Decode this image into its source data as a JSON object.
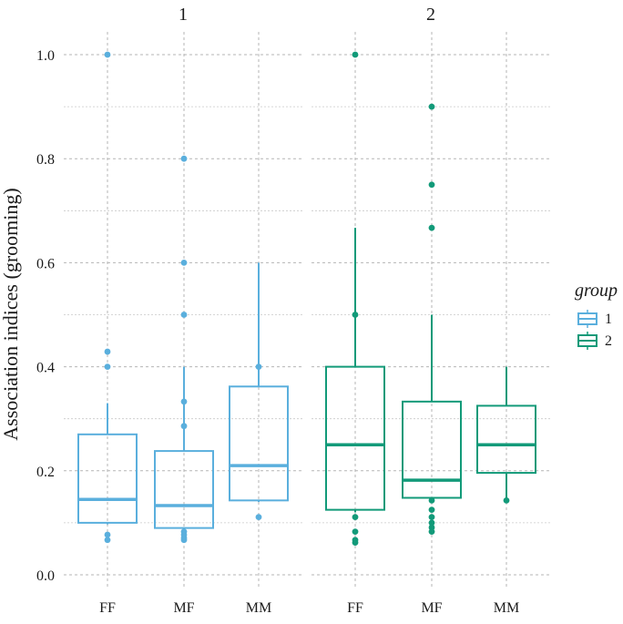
{
  "chart_data": {
    "type": "boxplot",
    "ylabel": "Association indices (grooming)",
    "xlabel": "",
    "ylim": [
      -0.02,
      1.05
    ],
    "yticks": [
      0.0,
      0.2,
      0.4,
      0.6,
      0.8,
      1.0
    ],
    "ytick_labels": [
      "0.0",
      "0.2",
      "0.4",
      "0.6",
      "0.8",
      "1.0"
    ],
    "categories": [
      "FF",
      "MF",
      "MM"
    ],
    "grid": true,
    "legend": {
      "title": "group",
      "position": "right",
      "entries": [
        {
          "label": "1",
          "color": "#5aafdd"
        },
        {
          "label": "2",
          "color": "#129a79"
        }
      ]
    },
    "panels": [
      {
        "title": "1",
        "group": "1",
        "color": "#5aafdd",
        "boxes": [
          {
            "category": "FF",
            "min": 0.097,
            "q1": 0.1,
            "median": 0.145,
            "q3": 0.27,
            "max": 0.33,
            "outliers": [
              0.067,
              0.077,
              0.4,
              0.429,
              1.0
            ]
          },
          {
            "category": "MF",
            "min": 0.09,
            "q1": 0.09,
            "median": 0.133,
            "q3": 0.238,
            "max": 0.4,
            "outliers": [
              0.067,
              0.071,
              0.077,
              0.083,
              0.286,
              0.333,
              0.5,
              0.6,
              0.8
            ]
          },
          {
            "category": "MM",
            "min": 0.14,
            "q1": 0.143,
            "median": 0.21,
            "q3": 0.362,
            "max": 0.6,
            "outliers": [
              0.111,
              0.4
            ]
          }
        ]
      },
      {
        "title": "2",
        "group": "2",
        "color": "#129a79",
        "boxes": [
          {
            "category": "FF",
            "min": 0.12,
            "q1": 0.125,
            "median": 0.25,
            "q3": 0.4,
            "max": 0.667,
            "outliers": [
              0.062,
              0.067,
              0.083,
              0.111,
              0.5,
              1.0
            ]
          },
          {
            "category": "MF",
            "min": 0.143,
            "q1": 0.148,
            "median": 0.182,
            "q3": 0.333,
            "max": 0.5,
            "outliers": [
              0.083,
              0.091,
              0.1,
              0.111,
              0.125,
              0.143,
              0.667,
              0.75,
              0.9
            ]
          },
          {
            "category": "MM",
            "min": 0.143,
            "q1": 0.196,
            "median": 0.25,
            "q3": 0.325,
            "max": 0.4,
            "outliers": [
              0.143
            ]
          }
        ]
      }
    ]
  }
}
